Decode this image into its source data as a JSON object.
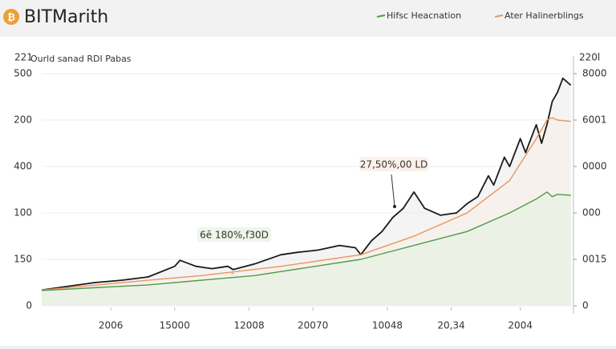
{
  "header": {
    "logo": "₿",
    "title": "BITMarith"
  },
  "chart_data": {
    "type": "line",
    "title": "Ourld sanad RDI Pabas",
    "ylabel": "221",
    "y2label": "220l",
    "xlim": [
      0,
      100
    ],
    "xticks": [
      {
        "value": 13,
        "label": "2006"
      },
      {
        "value": 25,
        "label": "15000"
      },
      {
        "value": 39,
        "label": "12008"
      },
      {
        "value": 51,
        "label": "20070"
      },
      {
        "value": 65,
        "label": "10048"
      },
      {
        "value": 77,
        "label": "20,34"
      },
      {
        "value": 90,
        "label": "2004"
      }
    ],
    "ylim": [
      0,
      5
    ],
    "yticks": [
      {
        "value": 0,
        "label": "0"
      },
      {
        "value": 1,
        "label": "150"
      },
      {
        "value": 2,
        "label": "100"
      },
      {
        "value": 3,
        "label": "400"
      },
      {
        "value": 4,
        "label": "200"
      },
      {
        "value": 5,
        "label": "500"
      }
    ],
    "y2lim": [
      0,
      5
    ],
    "y2ticks": [
      {
        "value": 0,
        "label": "0"
      },
      {
        "value": 1,
        "label": "0015"
      },
      {
        "value": 2,
        "label": "000"
      },
      {
        "value": 3,
        "label": "0000"
      },
      {
        "value": 4,
        "label": "6001"
      },
      {
        "value": 5,
        "label": "8000"
      }
    ],
    "series": [
      {
        "color": "#1a1a1a",
        "x": [
          0,
          5,
          10,
          15,
          20,
          25,
          26,
          29,
          32,
          35,
          36,
          40,
          45,
          48,
          52,
          56,
          59,
          60,
          62,
          64,
          66,
          68,
          70,
          72,
          73,
          75,
          78,
          80,
          82,
          84,
          85,
          87,
          88,
          90,
          91,
          93,
          94,
          95,
          96,
          97,
          98,
          99.5
        ],
        "values": [
          0.34,
          0.42,
          0.5,
          0.55,
          0.62,
          0.85,
          0.98,
          0.85,
          0.8,
          0.85,
          0.78,
          0.9,
          1.1,
          1.15,
          1.2,
          1.3,
          1.25,
          1.1,
          1.4,
          1.6,
          1.9,
          2.1,
          2.45,
          2.1,
          2.05,
          1.95,
          2.0,
          2.2,
          2.35,
          2.8,
          2.6,
          3.2,
          3.0,
          3.6,
          3.3,
          3.9,
          3.5,
          3.9,
          4.4,
          4.6,
          4.9,
          4.75
        ]
      },
      {
        "name": "Ater Halinerblings",
        "color": "#e8955a",
        "x": [
          0,
          20,
          30,
          45,
          60,
          70,
          80,
          88,
          93,
          95,
          96,
          97,
          99.5
        ],
        "values": [
          0.34,
          0.55,
          0.65,
          0.85,
          1.1,
          1.5,
          2.0,
          2.7,
          3.6,
          4.0,
          4.05,
          4.0,
          3.97
        ]
      },
      {
        "name": "Hifsc Heacnation",
        "color": "#4f9a4a",
        "x": [
          0,
          20,
          40,
          60,
          70,
          80,
          88,
          93,
          95,
          96,
          97,
          99.5
        ],
        "values": [
          0.33,
          0.45,
          0.65,
          1.0,
          1.3,
          1.6,
          2.0,
          2.3,
          2.45,
          2.35,
          2.4,
          2.38
        ]
      }
    ],
    "annotations": [
      {
        "text": "27,50%,00 LD"
      },
      {
        "text": "6ē 180%,f30D"
      }
    ]
  }
}
